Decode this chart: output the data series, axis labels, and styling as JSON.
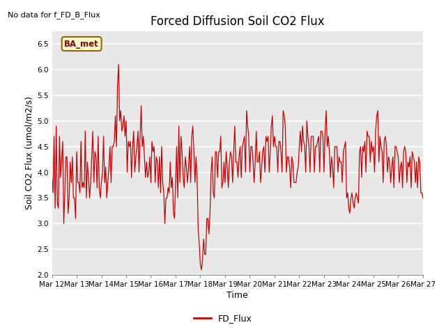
{
  "title": "Forced Diffusion Soil CO2 Flux",
  "xlabel": "Time",
  "ylabel": "Soil CO2 Flux (umol/m2/s)",
  "no_data_text": "No data for f_FD_B_Flux",
  "legend_label": "FD_Flux",
  "ba_met_label": "BA_met",
  "ylim": [
    2.0,
    6.75
  ],
  "yticks": [
    2.0,
    2.5,
    3.0,
    3.5,
    4.0,
    4.5,
    5.0,
    5.5,
    6.0,
    6.5
  ],
  "line_color": "#CC0000",
  "ba_met_bg": "#FFFFCC",
  "ba_met_border": "#996600",
  "plot_bg": "#E8E8E8",
  "fig_bg": "#FFFFFF",
  "title_fontsize": 12,
  "axis_label_fontsize": 9,
  "tick_fontsize": 7.5,
  "x_start_day": 12,
  "x_end_day": 27,
  "xtick_days": [
    12,
    13,
    14,
    15,
    16,
    17,
    18,
    19,
    20,
    21,
    22,
    23,
    24,
    25,
    26,
    27
  ],
  "flux_values": [
    3.9,
    3.6,
    4.7,
    3.3,
    4.9,
    3.4,
    3.3,
    4.7,
    3.9,
    4.2,
    4.6,
    3.0,
    3.6,
    4.3,
    4.3,
    3.2,
    3.5,
    4.2,
    3.8,
    4.3,
    3.5,
    3.5,
    3.1,
    4.4,
    3.8,
    3.8,
    3.6,
    4.6,
    3.7,
    3.8,
    3.7,
    4.8,
    3.5,
    4.2,
    3.9,
    3.5,
    3.8,
    4.3,
    4.8,
    3.8,
    4.4,
    4.3,
    3.7,
    4.7,
    3.7,
    3.5,
    3.8,
    4.0,
    4.7,
    3.8,
    4.1,
    3.5,
    3.8,
    4.1,
    4.5,
    3.8,
    4.5,
    4.5,
    4.6,
    5.1,
    4.5,
    5.7,
    6.1,
    5.0,
    5.2,
    4.8,
    4.9,
    5.1,
    4.7,
    5.0,
    4.0,
    4.6,
    4.5,
    4.6,
    3.9,
    4.5,
    4.8,
    4.0,
    4.3,
    4.5,
    4.8,
    4.0,
    4.7,
    5.3,
    4.5,
    4.7,
    4.3,
    3.9,
    4.2,
    3.9,
    4.0,
    4.3,
    3.8,
    4.6,
    4.4,
    4.5,
    3.8,
    4.3,
    4.2,
    3.7,
    4.3,
    3.6,
    4.5,
    3.8,
    3.6,
    3.0,
    3.5,
    3.5,
    3.7,
    3.6,
    4.2,
    3.7,
    3.9,
    3.2,
    3.1,
    3.8,
    4.5,
    3.5,
    4.9,
    3.8,
    4.7,
    4.4,
    3.9,
    3.7,
    4.3,
    4.1,
    3.8,
    4.1,
    4.5,
    3.8,
    4.7,
    4.9,
    4.4,
    3.8,
    4.3,
    3.9,
    2.9,
    2.6,
    2.2,
    2.1,
    2.3,
    2.7,
    2.4,
    2.4,
    3.1,
    3.1,
    2.8,
    3.2,
    4.0,
    4.3,
    3.6,
    3.5,
    4.4,
    4.4,
    3.9,
    4.4,
    4.4,
    4.7,
    3.7,
    3.8,
    4.2,
    3.8,
    4.4,
    4.1,
    3.7,
    4.2,
    4.4,
    4.3,
    3.8,
    4.4,
    4.9,
    4.2,
    4.2,
    3.9,
    4.3,
    4.5,
    3.9,
    4.5,
    4.6,
    4.7,
    4.0,
    5.2,
    4.9,
    4.7,
    4.0,
    4.5,
    4.5,
    4.2,
    3.8,
    4.2,
    4.8,
    4.2,
    4.2,
    4.4,
    3.8,
    4.1,
    4.4,
    4.5,
    4.0,
    4.7,
    4.6,
    4.7,
    4.0,
    4.4,
    4.9,
    5.1,
    4.5,
    4.7,
    4.5,
    4.5,
    4.0,
    4.6,
    4.6,
    4.4,
    4.0,
    5.2,
    5.1,
    4.9,
    4.0,
    4.3,
    4.3,
    4.1,
    3.7,
    4.3,
    4.2,
    3.8,
    3.8,
    3.8,
    4.0,
    4.1,
    4.5,
    4.8,
    4.4,
    4.9,
    4.6,
    4.5,
    4.0,
    5.0,
    4.7,
    4.5,
    4.0,
    4.7,
    4.7,
    4.7,
    4.0,
    4.5,
    4.5,
    4.6,
    4.7,
    4.0,
    4.8,
    4.8,
    4.7,
    4.0,
    4.8,
    5.2,
    4.5,
    4.7,
    4.4,
    3.9,
    4.3,
    4.1,
    3.7,
    4.5,
    4.5,
    4.5,
    4.0,
    4.3,
    4.2,
    4.2,
    3.8,
    4.4,
    4.5,
    4.6,
    3.5,
    3.6,
    3.3,
    3.2,
    3.5,
    3.6,
    3.4,
    3.3,
    3.5,
    3.6,
    3.5,
    3.4,
    4.4,
    4.5,
    3.9,
    4.5,
    4.4,
    4.6,
    4.0,
    4.8,
    4.7,
    4.7,
    4.2,
    4.6,
    4.4,
    4.5,
    4.0,
    4.8,
    5.1,
    5.2,
    4.2,
    4.7,
    4.5,
    4.4,
    3.8,
    4.6,
    4.7,
    4.5,
    4.0,
    4.3,
    4.2,
    3.8,
    4.1,
    4.3,
    3.7,
    4.5,
    4.5,
    4.4,
    4.3,
    3.8,
    4.1,
    4.2,
    3.7,
    4.4,
    4.5,
    4.4,
    3.8,
    4.2,
    4.1,
    4.3,
    3.7,
    4.4,
    4.3,
    4.2,
    3.8,
    4.2,
    3.7,
    4.3,
    4.2,
    3.6,
    3.6,
    3.5
  ]
}
